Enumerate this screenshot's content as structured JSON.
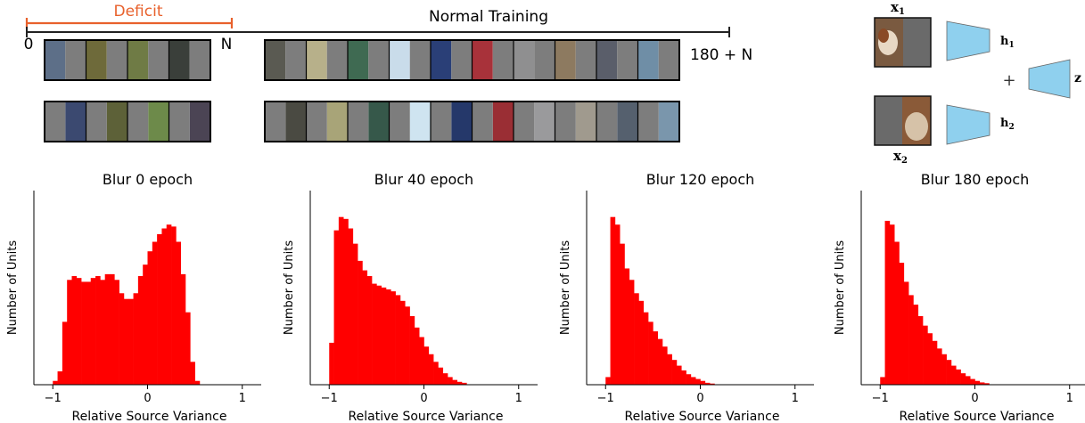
{
  "timeline": {
    "deficit_label": "Deficit",
    "normal_label": "Normal Training",
    "start_label": "0",
    "n_label": "N",
    "end_label": "180 + N",
    "deficit_color": "#e8612c"
  },
  "model": {
    "x1_label": "x",
    "x1_sub": "1",
    "x2_label": "x",
    "x2_sub": "2",
    "h1_label": "h",
    "h1_sub": "1",
    "h2_label": "h",
    "h2_sub": "2",
    "plus": "+",
    "z_label": "z",
    "encoder_color": "#8fd0ee"
  },
  "image_strips": {
    "deficit_top": [
      "#5d6f88",
      "#6e6a3a",
      "#6f7b45",
      "#3a3f3a"
    ],
    "deficit_bottom": [
      "#3b4970",
      "#5d6138",
      "#6d8a4a",
      "#4b4454"
    ],
    "normal_top": [
      "#5a5a52",
      "#b7b08a",
      "#3f6a52",
      "#c9dcea",
      "#2a3f77",
      "#a8323a",
      "#8f8f90",
      "#8d7a60",
      "#5a5e6a",
      "#6f8ea6"
    ],
    "normal_bottom": [
      "#4a4a42",
      "#a8a478",
      "#36584a",
      "#cfe4f0",
      "#25386a",
      "#9a2e34",
      "#9a9a9c",
      "#a09a8e",
      "#55606e",
      "#7a96ac"
    ],
    "gray": "#7d7d7d"
  },
  "chart_data": [
    {
      "type": "histogram",
      "title": "Blur 0 epoch",
      "xlabel": "Relative Source Variance",
      "ylabel": "Number of Units",
      "xlim": [
        -1.2,
        1.2
      ],
      "xticks": [
        "−1",
        "0",
        "1"
      ],
      "bin_edges_start": -1.0,
      "bin_width": 0.05,
      "values": [
        0.02,
        0.07,
        0.33,
        0.55,
        0.57,
        0.56,
        0.54,
        0.54,
        0.56,
        0.57,
        0.55,
        0.58,
        0.58,
        0.55,
        0.48,
        0.45,
        0.45,
        0.48,
        0.57,
        0.63,
        0.7,
        0.75,
        0.79,
        0.82,
        0.84,
        0.83,
        0.75,
        0.58,
        0.38,
        0.12,
        0.02
      ],
      "color": "#ff0000"
    },
    {
      "type": "histogram",
      "title": "Blur 40 epoch",
      "xlabel": "Relative Source Variance",
      "ylabel": "Number of Units",
      "xlim": [
        -1.2,
        1.2
      ],
      "xticks": [
        "−1",
        "0",
        "1"
      ],
      "bin_edges_start": -1.0,
      "bin_width": 0.05,
      "values": [
        0.22,
        0.81,
        0.88,
        0.87,
        0.82,
        0.74,
        0.65,
        0.6,
        0.57,
        0.53,
        0.52,
        0.51,
        0.5,
        0.49,
        0.47,
        0.44,
        0.41,
        0.36,
        0.3,
        0.25,
        0.2,
        0.16,
        0.12,
        0.09,
        0.06,
        0.04,
        0.025,
        0.015,
        0.01
      ],
      "color": "#ff0000"
    },
    {
      "type": "histogram",
      "title": "Blur 120 epoch",
      "xlabel": "Relative Source Variance",
      "ylabel": "Number of Units",
      "xlim": [
        -1.2,
        1.2
      ],
      "xticks": [
        "−1",
        "0",
        "1"
      ],
      "bin_edges_start": -1.0,
      "bin_width": 0.05,
      "values": [
        0.04,
        0.88,
        0.84,
        0.74,
        0.61,
        0.55,
        0.48,
        0.44,
        0.38,
        0.33,
        0.28,
        0.24,
        0.2,
        0.16,
        0.13,
        0.1,
        0.075,
        0.055,
        0.04,
        0.03,
        0.02,
        0.01,
        0.006
      ],
      "color": "#ff0000"
    },
    {
      "type": "histogram",
      "title": "Blur 180 epoch",
      "xlabel": "Relative Source Variance",
      "ylabel": "Number of Units",
      "xlim": [
        -1.2,
        1.2
      ],
      "xticks": [
        "−1",
        "0",
        "1"
      ],
      "bin_edges_start": -1.0,
      "bin_width": 0.05,
      "values": [
        0.04,
        0.86,
        0.84,
        0.75,
        0.64,
        0.54,
        0.47,
        0.42,
        0.36,
        0.31,
        0.27,
        0.23,
        0.19,
        0.16,
        0.13,
        0.1,
        0.08,
        0.06,
        0.045,
        0.03,
        0.02,
        0.012,
        0.008
      ],
      "color": "#ff0000"
    }
  ]
}
